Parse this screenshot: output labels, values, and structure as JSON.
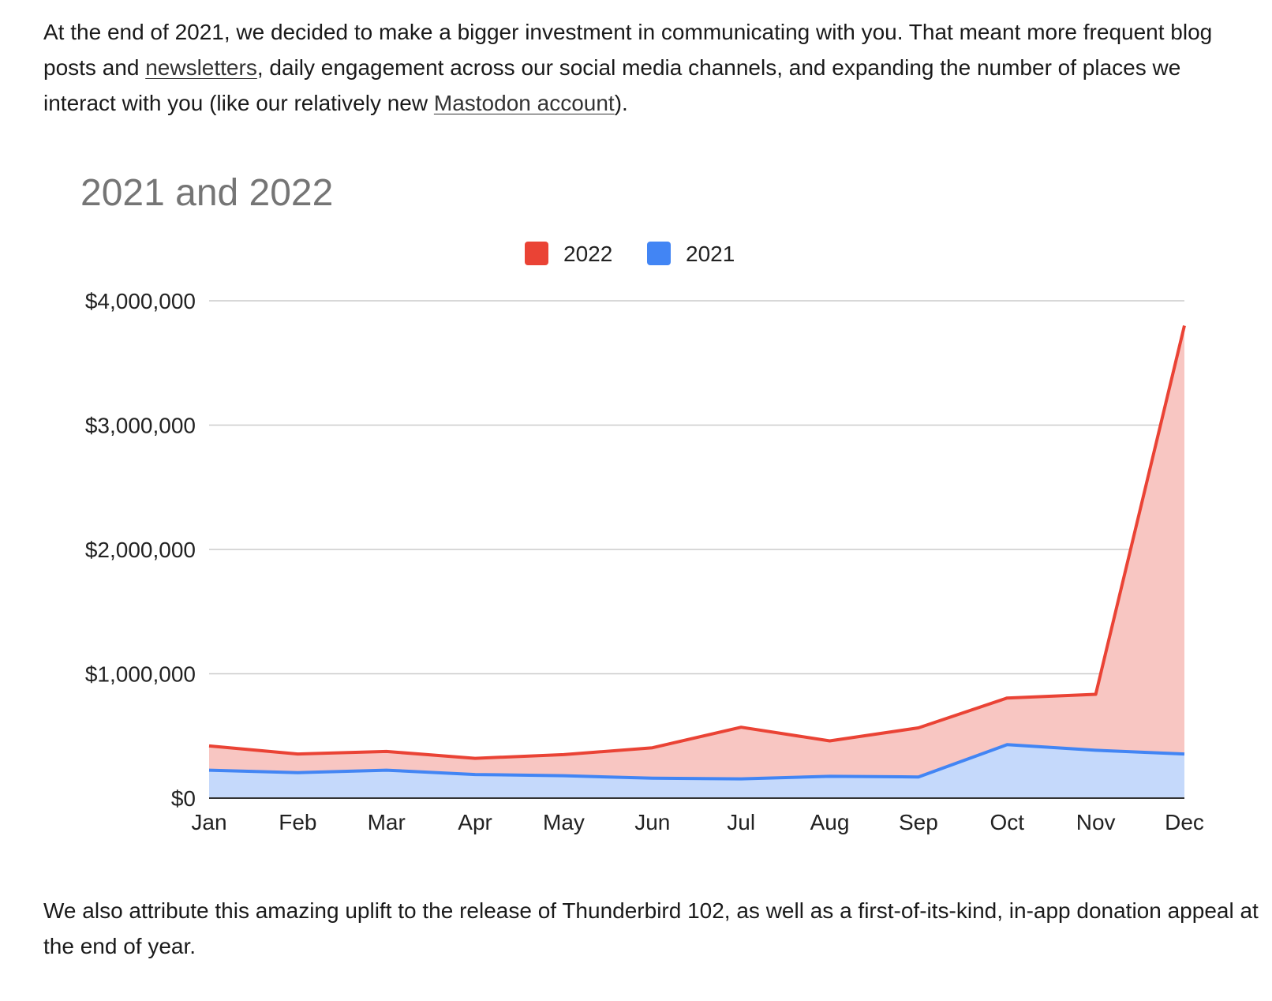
{
  "article": {
    "para1": {
      "t1": "At the end of 2021, we decided to make a bigger investment in communicating with you. That meant more frequent blog posts and ",
      "link1": "newsletters",
      "t2": ", daily engagement across our social media channels, and expanding the number of places we interact with you (like our relatively new ",
      "link2": "Mastodon account",
      "t3": ")."
    },
    "para2": "We also attribute this amazing uplift to the release of Thunderbird 102, as well as a first-of-its-kind, in-app donation appeal at the end of year."
  },
  "chart_data": {
    "type": "area",
    "title": "2021 and 2022",
    "xlabel": "",
    "ylabel": "",
    "categories": [
      "Jan",
      "Feb",
      "Mar",
      "Apr",
      "May",
      "Jun",
      "Jul",
      "Aug",
      "Sep",
      "Oct",
      "Nov",
      "Dec"
    ],
    "series": [
      {
        "name": "2022",
        "color": "#ea4335",
        "fill": "#f8c6c2",
        "values": [
          420000,
          355000,
          375000,
          320000,
          350000,
          405000,
          570000,
          460000,
          565000,
          805000,
          835000,
          3800000
        ]
      },
      {
        "name": "2021",
        "color": "#4285f4",
        "fill": "#c5d9fb",
        "values": [
          225000,
          205000,
          225000,
          190000,
          180000,
          160000,
          155000,
          175000,
          170000,
          430000,
          385000,
          355000
        ]
      }
    ],
    "ylim": [
      0,
      4000000
    ],
    "yticks": [
      0,
      1000000,
      2000000,
      3000000,
      4000000
    ],
    "ytick_labels": [
      "$0",
      "$1,000,000",
      "$2,000,000",
      "$3,000,000",
      "$4,000,000"
    ],
    "grid": true,
    "legend": "top-center"
  }
}
